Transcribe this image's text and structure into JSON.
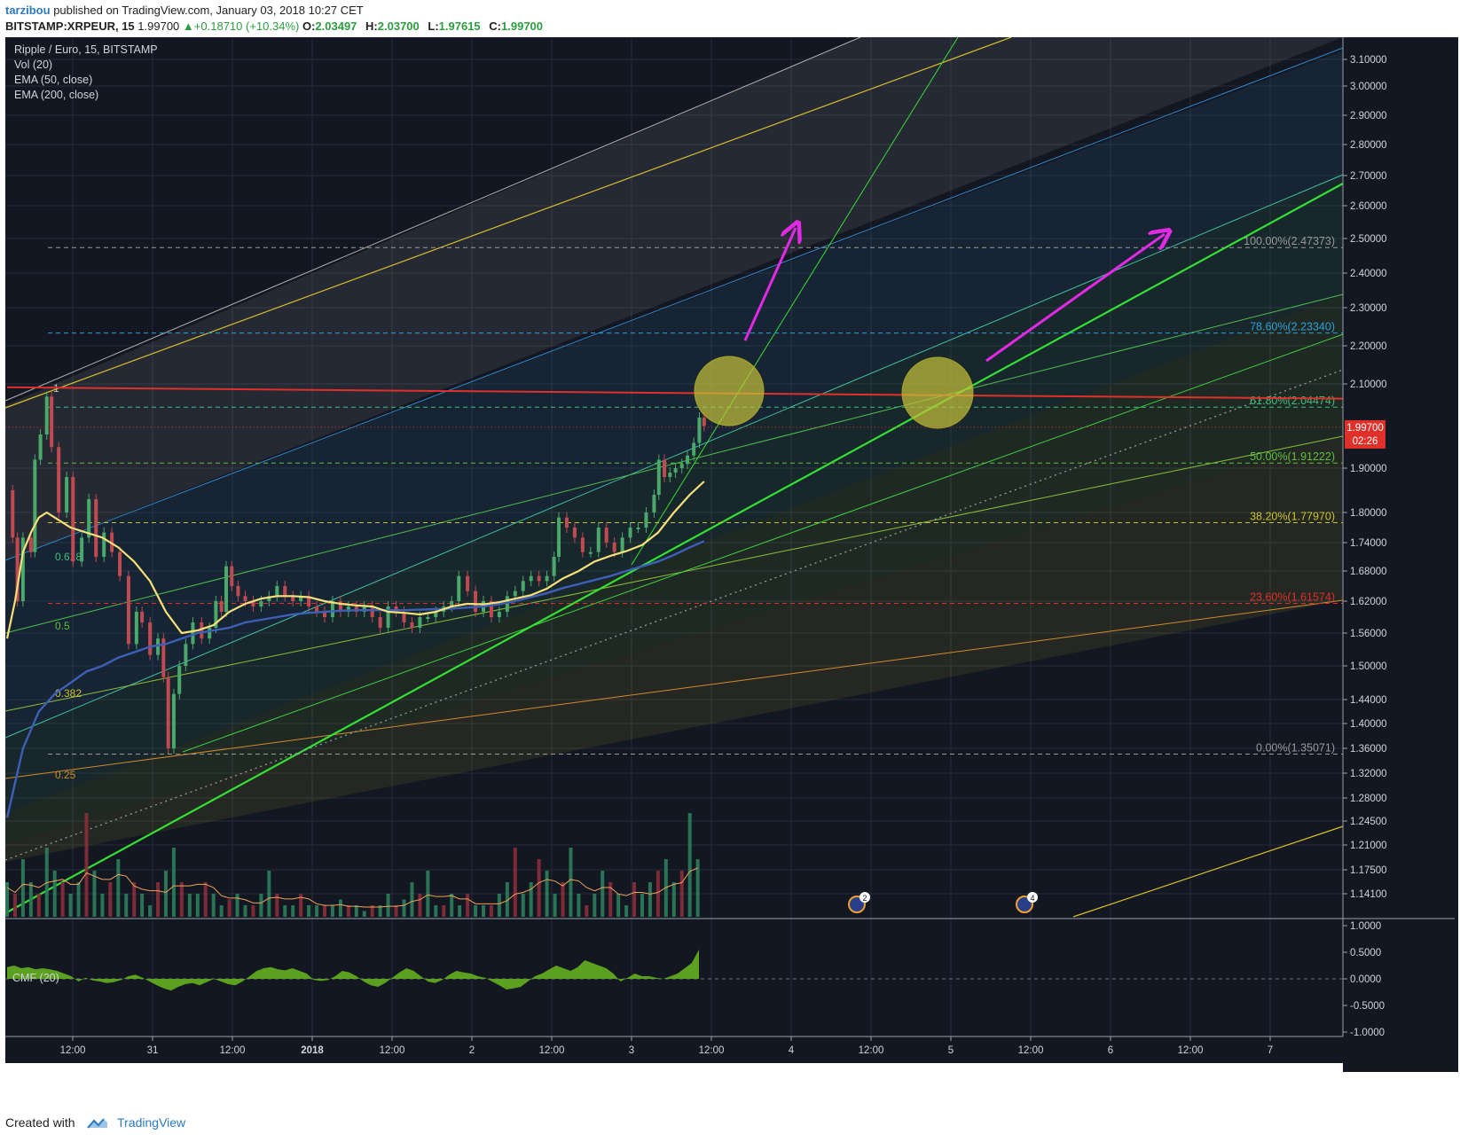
{
  "header": {
    "author": "tarzibou",
    "published": "published on TradingView.com, January 03, 2018 10:27 CET",
    "symbol": "BITSTAMP:XRPEUR, 15",
    "last": "1.99700",
    "change": "+0.18710 (+10.34%)",
    "o_label": "O:",
    "o": "2.03497",
    "h_label": "H:",
    "h": "2.03700",
    "l_label": "L:",
    "l": "1.97615",
    "c_label": "C:",
    "c": "1.99700"
  },
  "legend": {
    "title": "Ripple / Euro, 15, BITSTAMP",
    "vol": "Vol (20)",
    "ema50": "EMA (50, close)",
    "ema200": "EMA (200, close)"
  },
  "cmf": {
    "label": "CMF (20)"
  },
  "footer": {
    "created": "Created with",
    "brand": "TradingView"
  },
  "colors": {
    "background": "#131722",
    "ema50": "#f5e07a",
    "ema200": "#3e5fb8",
    "resistance": "#e0302a",
    "arrows": "#e22ae6",
    "circles": "#c8c33a",
    "cmf": "#5fa81f",
    "price_tag": "#e0302a"
  },
  "chart_data": {
    "type": "line",
    "symbol": "XRPEUR",
    "timeframe": "15",
    "y_ticks": [
      "3.10000",
      "3.00000",
      "2.90000",
      "2.80000",
      "2.70000",
      "2.60000",
      "2.50000",
      "2.40000",
      "2.30000",
      "2.20000",
      "2.10000",
      "1.90000",
      "1.80000",
      "1.74000",
      "1.68000",
      "1.62000",
      "1.56000",
      "1.50000",
      "1.44000",
      "1.40000",
      "1.36000",
      "1.32000",
      "1.28000",
      "1.24500",
      "1.21000",
      "1.17500",
      "1.14100"
    ],
    "x_ticks": [
      "12:00",
      "31",
      "12:00",
      "2018",
      "12:00",
      "2",
      "12:00",
      "3",
      "12:00",
      "4",
      "12:00",
      "5",
      "12:00",
      "6",
      "12:00",
      "7"
    ],
    "last_price": "1.99700",
    "countdown": "02:26",
    "fib_levels": [
      {
        "label": "100.00%(2.47373)",
        "value": 2.47373,
        "color": "#9a9a9a"
      },
      {
        "label": "78.60%(2.23340)",
        "value": 2.2334,
        "color": "#2ea0d8"
      },
      {
        "label": "61.80%(2.04474)",
        "value": 2.04474,
        "color": "#3fbf7f"
      },
      {
        "label": "50.00%(1.91222)",
        "value": 1.91222,
        "color": "#5cc23d"
      },
      {
        "label": "38.20%(1.77970)",
        "value": 1.7797,
        "color": "#c9c42a"
      },
      {
        "label": "23.60%(1.61574)",
        "value": 1.61574,
        "color": "#e0302a"
      },
      {
        "label": "0.00%(1.35071)",
        "value": 1.35071,
        "color": "#9a9a9a"
      }
    ],
    "fan_labels": [
      "1",
      "0.618",
      "0.5",
      "0.382",
      "0.25"
    ],
    "price_path": [
      [
        0,
        1.85
      ],
      [
        0.7,
        1.75
      ],
      [
        1.3,
        1.62
      ],
      [
        2,
        1.75
      ],
      [
        3,
        1.72
      ],
      [
        3.5,
        1.92
      ],
      [
        4.2,
        1.98
      ],
      [
        5,
        2.07
      ],
      [
        5.6,
        1.95
      ],
      [
        6.5,
        1.8
      ],
      [
        7.5,
        1.88
      ],
      [
        8.3,
        1.7
      ],
      [
        9.4,
        1.75
      ],
      [
        10.3,
        1.83
      ],
      [
        11.2,
        1.71
      ],
      [
        12.2,
        1.76
      ],
      [
        13.2,
        1.72
      ],
      [
        14.2,
        1.67
      ],
      [
        15.3,
        1.54
      ],
      [
        16.3,
        1.6
      ],
      [
        17,
        1.58
      ],
      [
        18,
        1.52
      ],
      [
        19,
        1.55
      ],
      [
        19.7,
        1.48
      ],
      [
        20.3,
        1.36
      ],
      [
        21,
        1.45
      ],
      [
        21.7,
        1.5
      ],
      [
        22.5,
        1.54
      ],
      [
        23.4,
        1.58
      ],
      [
        24.5,
        1.55
      ],
      [
        25.5,
        1.57
      ],
      [
        26.3,
        1.62
      ],
      [
        27,
        1.6
      ],
      [
        27.6,
        1.69
      ],
      [
        28.3,
        1.65
      ],
      [
        29.1,
        1.63
      ],
      [
        30,
        1.62
      ],
      [
        31,
        1.61
      ],
      [
        32,
        1.62
      ],
      [
        33,
        1.63
      ],
      [
        34,
        1.65
      ],
      [
        35,
        1.63
      ],
      [
        36,
        1.62
      ],
      [
        37,
        1.63
      ],
      [
        38,
        1.61
      ],
      [
        39,
        1.6
      ],
      [
        40,
        1.59
      ],
      [
        41,
        1.62
      ],
      [
        42,
        1.6
      ],
      [
        43,
        1.61
      ],
      [
        44,
        1.6
      ],
      [
        45,
        1.61
      ],
      [
        46,
        1.59
      ],
      [
        47,
        1.57
      ],
      [
        48,
        1.61
      ],
      [
        49,
        1.6
      ],
      [
        50,
        1.58
      ],
      [
        51,
        1.57
      ],
      [
        52,
        1.59
      ],
      [
        53,
        1.59
      ],
      [
        54,
        1.6
      ],
      [
        55,
        1.61
      ],
      [
        56,
        1.62
      ],
      [
        56.9,
        1.67
      ],
      [
        58,
        1.64
      ],
      [
        59,
        1.6
      ],
      [
        60,
        1.62
      ],
      [
        61,
        1.59
      ],
      [
        62,
        1.6
      ],
      [
        63,
        1.63
      ],
      [
        64,
        1.64
      ],
      [
        65,
        1.66
      ],
      [
        66,
        1.67
      ],
      [
        67,
        1.66
      ],
      [
        68,
        1.67
      ],
      [
        68.9,
        1.71
      ],
      [
        69.5,
        1.79
      ],
      [
        70.5,
        1.77
      ],
      [
        71.5,
        1.75
      ],
      [
        72.5,
        1.72
      ],
      [
        73.5,
        1.72
      ],
      [
        74.5,
        1.77
      ],
      [
        75.5,
        1.74
      ],
      [
        76.5,
        1.72
      ],
      [
        77.5,
        1.75
      ],
      [
        78.5,
        1.77
      ],
      [
        79.5,
        1.77
      ],
      [
        80.5,
        1.8
      ],
      [
        81.5,
        1.84
      ],
      [
        82.1,
        1.92
      ],
      [
        82.8,
        1.88
      ],
      [
        83.5,
        1.89
      ],
      [
        84.2,
        1.9
      ],
      [
        85,
        1.91
      ],
      [
        85.7,
        1.93
      ],
      [
        86.5,
        1.96
      ],
      [
        87.2,
        2.02
      ],
      [
        87.8,
        2.0
      ]
    ],
    "ema50": [
      [
        0,
        1.55
      ],
      [
        1,
        1.62
      ],
      [
        2,
        1.72
      ],
      [
        3,
        1.76
      ],
      [
        4,
        1.79
      ],
      [
        5,
        1.8
      ],
      [
        6,
        1.79
      ],
      [
        8,
        1.77
      ],
      [
        10,
        1.76
      ],
      [
        12,
        1.75
      ],
      [
        14,
        1.73
      ],
      [
        16,
        1.7
      ],
      [
        18,
        1.66
      ],
      [
        20,
        1.6
      ],
      [
        22,
        1.56
      ],
      [
        24,
        1.565
      ],
      [
        26,
        1.575
      ],
      [
        28,
        1.6
      ],
      [
        30,
        1.615
      ],
      [
        32,
        1.625
      ],
      [
        34,
        1.63
      ],
      [
        36,
        1.63
      ],
      [
        38,
        1.628
      ],
      [
        40,
        1.62
      ],
      [
        42,
        1.615
      ],
      [
        44,
        1.612
      ],
      [
        46,
        1.61
      ],
      [
        48,
        1.6
      ],
      [
        50,
        1.598
      ],
      [
        52,
        1.595
      ],
      [
        54,
        1.6
      ],
      [
        56,
        1.61
      ],
      [
        58,
        1.615
      ],
      [
        60,
        1.614
      ],
      [
        62,
        1.618
      ],
      [
        64,
        1.625
      ],
      [
        66,
        1.632
      ],
      [
        68,
        1.645
      ],
      [
        70,
        1.665
      ],
      [
        72,
        1.68
      ],
      [
        74,
        1.7
      ],
      [
        76,
        1.712
      ],
      [
        78,
        1.722
      ],
      [
        80,
        1.735
      ],
      [
        82,
        1.76
      ],
      [
        84,
        1.8
      ],
      [
        86,
        1.84
      ],
      [
        87.8,
        1.87
      ]
    ],
    "ema200": [
      [
        0,
        1.25
      ],
      [
        2,
        1.36
      ],
      [
        4,
        1.42
      ],
      [
        6,
        1.45
      ],
      [
        8,
        1.47
      ],
      [
        10,
        1.49
      ],
      [
        12,
        1.5
      ],
      [
        14,
        1.515
      ],
      [
        16,
        1.525
      ],
      [
        18,
        1.535
      ],
      [
        20,
        1.54
      ],
      [
        22,
        1.55
      ],
      [
        24,
        1.56
      ],
      [
        26,
        1.565
      ],
      [
        28,
        1.57
      ],
      [
        30,
        1.58
      ],
      [
        32,
        1.585
      ],
      [
        34,
        1.59
      ],
      [
        36,
        1.595
      ],
      [
        38,
        1.598
      ],
      [
        40,
        1.6
      ],
      [
        42,
        1.602
      ],
      [
        44,
        1.603
      ],
      [
        46,
        1.603
      ],
      [
        48,
        1.603
      ],
      [
        50,
        1.603
      ],
      [
        52,
        1.604
      ],
      [
        54,
        1.605
      ],
      [
        56,
        1.606
      ],
      [
        58,
        1.608
      ],
      [
        60,
        1.61
      ],
      [
        62,
        1.614
      ],
      [
        64,
        1.62
      ],
      [
        66,
        1.628
      ],
      [
        68,
        1.636
      ],
      [
        70,
        1.646
      ],
      [
        72,
        1.654
      ],
      [
        74,
        1.662
      ],
      [
        76,
        1.67
      ],
      [
        78,
        1.68
      ],
      [
        80,
        1.69
      ],
      [
        82,
        1.7
      ],
      [
        84,
        1.714
      ],
      [
        86,
        1.73
      ],
      [
        87.8,
        1.743
      ]
    ],
    "resistance": [
      [
        0,
        2.092
      ],
      [
        170,
        2.065
      ]
    ],
    "volume_max": 1.0,
    "volume_bars": [
      0.3,
      0.2,
      0.5,
      0.3,
      0.2,
      0.6,
      0.4,
      0.3,
      0.2,
      0.3,
      0.9,
      0.4,
      0.2,
      0.3,
      0.5,
      0.2,
      0.3,
      0.2,
      0.1,
      0.3,
      0.4,
      0.6,
      0.3,
      0.2,
      0.2,
      0.3,
      0.2,
      0.1,
      0.15,
      0.2,
      0.1,
      0.1,
      0.2,
      0.4,
      0.2,
      0.1,
      0.1,
      0.2,
      0.1,
      0.1,
      0.1,
      0.1,
      0.15,
      0.1,
      0.1,
      0.05,
      0.1,
      0.1,
      0.2,
      0.1,
      0.15,
      0.3,
      0.2,
      0.4,
      0.1,
      0.1,
      0.2,
      0.1,
      0.2,
      0.1,
      0.1,
      0.1,
      0.2,
      0.3,
      0.6,
      0.2,
      0.3,
      0.5,
      0.4,
      0.2,
      0.3,
      0.6,
      0.2,
      0.1,
      0.2,
      0.4,
      0.3,
      0.2,
      0.1,
      0.3,
      0.2,
      0.3,
      0.4,
      0.5,
      0.3,
      0.4,
      0.9,
      0.5
    ],
    "cmf_ticks": [
      "1.0000",
      "0.5000",
      "0.0000",
      "-0.5000",
      "-1.0000"
    ],
    "cmf_values": [
      0.22,
      0.25,
      0.2,
      0.22,
      0.18,
      0.2,
      0.18,
      0.15,
      0.1,
      0.05,
      -0.05,
      0.02,
      -0.03,
      -0.05,
      -0.08,
      -0.06,
      -0.02,
      0.05,
      0.08,
      0.02,
      -0.05,
      -0.12,
      -0.18,
      -0.22,
      -0.15,
      -0.1,
      -0.08,
      -0.12,
      -0.06,
      0.0,
      -0.05,
      -0.1,
      -0.12,
      -0.05,
      0.05,
      0.15,
      0.2,
      0.22,
      0.18,
      0.16,
      0.2,
      0.15,
      0.1,
      -0.02,
      -0.04,
      -0.02,
      0.05,
      0.15,
      0.12,
      0.05,
      -0.05,
      -0.12,
      -0.15,
      -0.08,
      0.02,
      0.12,
      0.2,
      0.15,
      0.05,
      -0.05,
      -0.08,
      -0.02,
      0.08,
      0.15,
      0.12,
      0.1,
      0.05,
      0.02,
      -0.05,
      -0.12,
      -0.2,
      -0.18,
      -0.15,
      -0.05,
      0.05,
      0.1,
      0.18,
      0.25,
      0.2,
      0.15,
      0.22,
      0.35,
      0.3,
      0.25,
      0.2,
      0.1,
      -0.05,
      0.02,
      0.1,
      0.05,
      0.05,
      0.02,
      0.0,
      0.05,
      0.1,
      0.2,
      0.3,
      0.55
    ],
    "event_badges": [
      "2",
      "4"
    ]
  }
}
